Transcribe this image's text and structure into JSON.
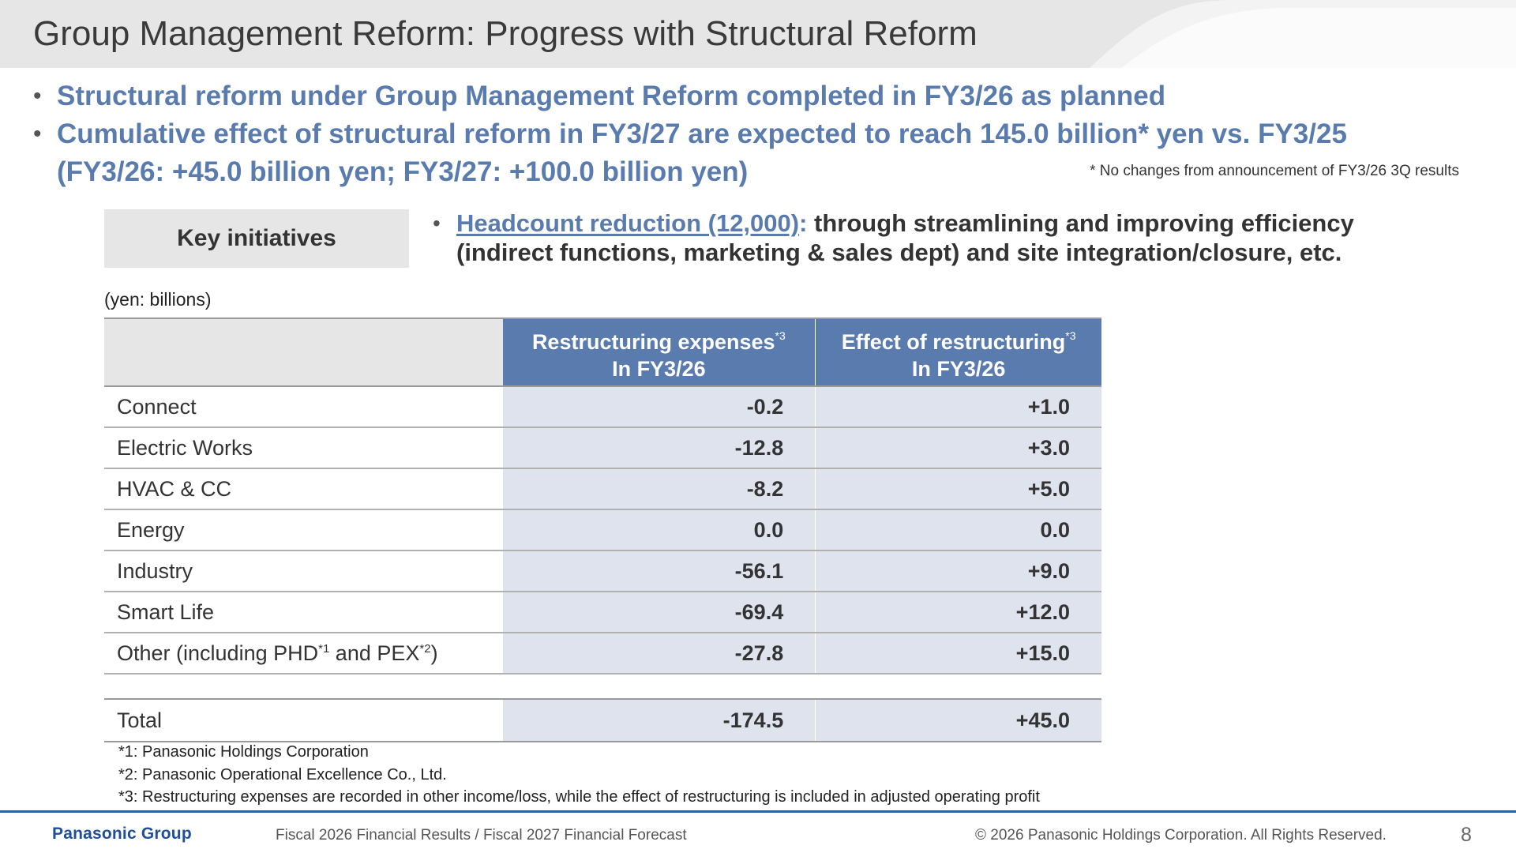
{
  "slide": {
    "title": "Group Management Reform: Progress with Structural Reform",
    "bullets": [
      "Structural reform under Group Management Reform completed in FY3/26 as planned",
      "Cumulative effect of structural reform in FY3/27 are expected to reach 145.0 billion* yen vs. FY3/25"
    ],
    "bullet2_continuation": "(FY3/26: +45.0 billion yen; FY3/27: +100.0 billion yen)",
    "side_note": "* No changes from announcement of FY3/26 3Q results",
    "key_initiatives_label": "Key initiatives",
    "initiative": {
      "link_text": "Headcount reduction (12,000)",
      "colon": ":",
      "text_line1": " through streamlining and improving efficiency",
      "text_line2": "(indirect functions, marketing & sales dept) and site integration/closure, etc."
    },
    "unit_note": "(yen: billions)"
  },
  "table": {
    "headers": {
      "expenses_line1": "Restructuring expenses",
      "expenses_sup": "*3",
      "expenses_line2": "In FY3/26",
      "effect_line1": "Effect of restructuring",
      "effect_sup": "*3",
      "effect_line2": "In FY3/26"
    },
    "rows": [
      {
        "label": "Connect",
        "expenses": "-0.2",
        "effect": "+1.0"
      },
      {
        "label": "Electric Works",
        "expenses": "-12.8",
        "effect": "+3.0"
      },
      {
        "label": "HVAC & CC",
        "expenses": "-8.2",
        "effect": "+5.0"
      },
      {
        "label": "Energy",
        "expenses": "0.0",
        "effect": "0.0"
      },
      {
        "label": "Industry",
        "expenses": "-56.1",
        "effect": "+9.0"
      },
      {
        "label": "Smart Life",
        "expenses": "-69.4",
        "effect": "+12.0"
      }
    ],
    "other_row": {
      "label_part1": "Other (including PHD",
      "sup1": "*1",
      "label_part2": " and PEX",
      "sup2": "*2",
      "label_part3": ")",
      "expenses": "-27.8",
      "effect": "+15.0"
    },
    "total": {
      "label": "Total",
      "expenses": "-174.5",
      "effect": "+45.0"
    }
  },
  "footnotes": [
    "*1: Panasonic Holdings Corporation",
    "*2: Panasonic Operational Excellence Co., Ltd.",
    "*3: Restructuring expenses are recorded in other income/loss, while the effect of restructuring is included in adjusted operating profit"
  ],
  "footer": {
    "logo": "Panasonic Group",
    "center": "Fiscal 2026 Financial Results / Fiscal 2027 Financial Forecast",
    "copyright": "© 2026 Panasonic Holdings Corporation. All Rights Reserved.",
    "page_number": "8"
  },
  "colors": {
    "accent_blue": "#5a7bae",
    "header_gray": "#e6e6e6",
    "cell_tint": "#dfe3ee",
    "footer_line": "#2c5fa3"
  }
}
